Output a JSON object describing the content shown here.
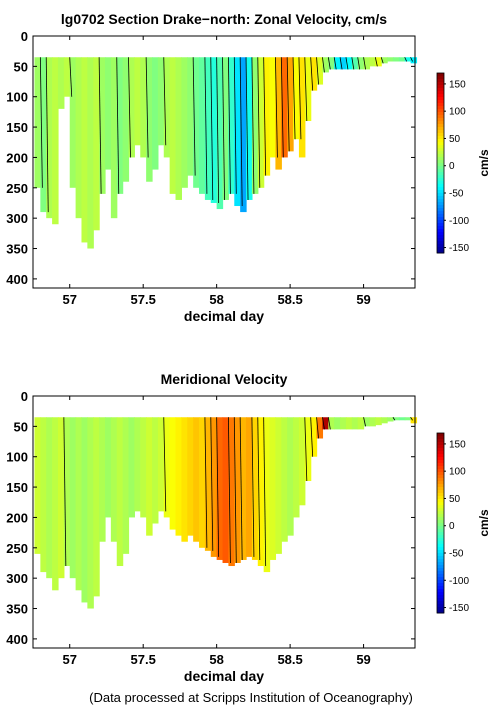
{
  "footer": "(Data processed at Scripps Institution of Oceanography)",
  "chart_data": [
    {
      "type": "heatmap",
      "title": "lg0702 Section Drake−north: Zonal Velocity, cm/s",
      "xlabel": "decimal day",
      "ylabel": "",
      "xlim": [
        56.75,
        59.35
      ],
      "ylim": [
        415,
        0
      ],
      "xticks": [
        57,
        57.5,
        58,
        58.5,
        59
      ],
      "xticklabels": [
        "57",
        "57.5",
        "58",
        "58.5",
        "59"
      ],
      "yticks": [
        0,
        50,
        100,
        150,
        200,
        250,
        300,
        350,
        400
      ],
      "colorbar": {
        "label": "cm/s",
        "range": [
          -160,
          170
        ],
        "ticks": [
          150,
          100,
          50,
          0,
          -50,
          -100,
          -150
        ]
      },
      "profiles": [
        {
          "x": 56.78,
          "bottom": 250,
          "value": 15
        },
        {
          "x": 56.82,
          "bottom": 290,
          "value": 5
        },
        {
          "x": 56.86,
          "bottom": 300,
          "value": 20
        },
        {
          "x": 56.9,
          "bottom": 310,
          "value": 25
        },
        {
          "x": 56.94,
          "bottom": 120,
          "value": 20
        },
        {
          "x": 56.98,
          "bottom": 100,
          "value": 25
        },
        {
          "x": 57.02,
          "bottom": 250,
          "value": 15
        },
        {
          "x": 57.06,
          "bottom": 300,
          "value": 20
        },
        {
          "x": 57.1,
          "bottom": 340,
          "value": 25
        },
        {
          "x": 57.14,
          "bottom": 350,
          "value": 20
        },
        {
          "x": 57.18,
          "bottom": 320,
          "value": 25
        },
        {
          "x": 57.22,
          "bottom": 260,
          "value": 15
        },
        {
          "x": 57.26,
          "bottom": 220,
          "value": 10
        },
        {
          "x": 57.3,
          "bottom": 300,
          "value": 15
        },
        {
          "x": 57.34,
          "bottom": 260,
          "value": 5
        },
        {
          "x": 57.38,
          "bottom": 240,
          "value": 10
        },
        {
          "x": 57.42,
          "bottom": 200,
          "value": 20
        },
        {
          "x": 57.46,
          "bottom": 180,
          "value": 25
        },
        {
          "x": 57.5,
          "bottom": 200,
          "value": 20
        },
        {
          "x": 57.54,
          "bottom": 240,
          "value": 10
        },
        {
          "x": 57.58,
          "bottom": 220,
          "value": 5
        },
        {
          "x": 57.62,
          "bottom": 180,
          "value": 10
        },
        {
          "x": 57.66,
          "bottom": 200,
          "value": 20
        },
        {
          "x": 57.7,
          "bottom": 260,
          "value": 25
        },
        {
          "x": 57.74,
          "bottom": 270,
          "value": 20
        },
        {
          "x": 57.78,
          "bottom": 250,
          "value": 15
        },
        {
          "x": 57.82,
          "bottom": 230,
          "value": 10
        },
        {
          "x": 57.86,
          "bottom": 250,
          "value": 0
        },
        {
          "x": 57.9,
          "bottom": 260,
          "value": -5
        },
        {
          "x": 57.94,
          "bottom": 270,
          "value": -15
        },
        {
          "x": 57.98,
          "bottom": 275,
          "value": -25
        },
        {
          "x": 58.02,
          "bottom": 285,
          "value": -10
        },
        {
          "x": 58.06,
          "bottom": 270,
          "value": 5
        },
        {
          "x": 58.1,
          "bottom": 260,
          "value": -20
        },
        {
          "x": 58.14,
          "bottom": 280,
          "value": -45
        },
        {
          "x": 58.18,
          "bottom": 290,
          "value": -65
        },
        {
          "x": 58.22,
          "bottom": 270,
          "value": -30
        },
        {
          "x": 58.26,
          "bottom": 260,
          "value": 10
        },
        {
          "x": 58.3,
          "bottom": 250,
          "value": 30
        },
        {
          "x": 58.34,
          "bottom": 230,
          "value": 50
        },
        {
          "x": 58.38,
          "bottom": 200,
          "value": 45
        },
        {
          "x": 58.42,
          "bottom": 220,
          "value": 70
        },
        {
          "x": 58.46,
          "bottom": 200,
          "value": 95
        },
        {
          "x": 58.5,
          "bottom": 190,
          "value": 75
        },
        {
          "x": 58.54,
          "bottom": 170,
          "value": 45
        },
        {
          "x": 58.58,
          "bottom": 200,
          "value": 55
        },
        {
          "x": 58.62,
          "bottom": 140,
          "value": 40
        },
        {
          "x": 58.66,
          "bottom": 90,
          "value": 55
        },
        {
          "x": 58.7,
          "bottom": 80,
          "value": 35
        },
        {
          "x": 58.74,
          "bottom": 60,
          "value": 15
        },
        {
          "x": 58.78,
          "bottom": 55,
          "value": 5
        },
        {
          "x": 58.82,
          "bottom": 55,
          "value": -40
        },
        {
          "x": 58.86,
          "bottom": 55,
          "value": -50
        },
        {
          "x": 58.9,
          "bottom": 55,
          "value": -35
        },
        {
          "x": 58.94,
          "bottom": 55,
          "value": -10
        },
        {
          "x": 58.98,
          "bottom": 55,
          "value": 10
        },
        {
          "x": 59.02,
          "bottom": 55,
          "value": 20
        },
        {
          "x": 59.06,
          "bottom": 50,
          "value": 25
        },
        {
          "x": 59.1,
          "bottom": 50,
          "value": 40
        },
        {
          "x": 59.14,
          "bottom": 45,
          "value": 15
        },
        {
          "x": 59.18,
          "bottom": 42,
          "value": 10
        },
        {
          "x": 59.22,
          "bottom": 42,
          "value": 5
        },
        {
          "x": 59.26,
          "bottom": 42,
          "value": 0
        },
        {
          "x": 59.3,
          "bottom": 42,
          "value": -30
        },
        {
          "x": 59.34,
          "bottom": 45,
          "value": -40
        }
      ],
      "top_depth": 35
    },
    {
      "type": "heatmap",
      "title": "Meridional Velocity",
      "xlabel": "decimal day",
      "ylabel": "",
      "xlim": [
        56.75,
        59.35
      ],
      "ylim": [
        415,
        0
      ],
      "xticks": [
        57,
        57.5,
        58,
        58.5,
        59
      ],
      "xticklabels": [
        "57",
        "57.5",
        "58",
        "58.5",
        "59"
      ],
      "yticks": [
        0,
        50,
        100,
        150,
        200,
        250,
        300,
        350,
        400
      ],
      "colorbar": {
        "label": "cm/s",
        "range": [
          -160,
          170
        ],
        "ticks": [
          150,
          100,
          50,
          0,
          -50,
          -100,
          -150
        ]
      },
      "profiles": [
        {
          "x": 56.78,
          "bottom": 260,
          "value": 30
        },
        {
          "x": 56.82,
          "bottom": 290,
          "value": 25
        },
        {
          "x": 56.86,
          "bottom": 300,
          "value": 20
        },
        {
          "x": 56.9,
          "bottom": 320,
          "value": 25
        },
        {
          "x": 56.94,
          "bottom": 300,
          "value": 30
        },
        {
          "x": 56.98,
          "bottom": 280,
          "value": 20
        },
        {
          "x": 57.02,
          "bottom": 300,
          "value": 15
        },
        {
          "x": 57.06,
          "bottom": 320,
          "value": 20
        },
        {
          "x": 57.1,
          "bottom": 340,
          "value": 15
        },
        {
          "x": 57.14,
          "bottom": 350,
          "value": 20
        },
        {
          "x": 57.18,
          "bottom": 330,
          "value": 25
        },
        {
          "x": 57.22,
          "bottom": 240,
          "value": 20
        },
        {
          "x": 57.26,
          "bottom": 200,
          "value": 15
        },
        {
          "x": 57.3,
          "bottom": 240,
          "value": 20
        },
        {
          "x": 57.34,
          "bottom": 280,
          "value": 25
        },
        {
          "x": 57.38,
          "bottom": 260,
          "value": 20
        },
        {
          "x": 57.42,
          "bottom": 200,
          "value": 15
        },
        {
          "x": 57.46,
          "bottom": 190,
          "value": 20
        },
        {
          "x": 57.5,
          "bottom": 200,
          "value": 25
        },
        {
          "x": 57.54,
          "bottom": 230,
          "value": 30
        },
        {
          "x": 57.58,
          "bottom": 210,
          "value": 25
        },
        {
          "x": 57.62,
          "bottom": 190,
          "value": 30
        },
        {
          "x": 57.66,
          "bottom": 200,
          "value": 40
        },
        {
          "x": 57.7,
          "bottom": 220,
          "value": 45
        },
        {
          "x": 57.74,
          "bottom": 230,
          "value": 50
        },
        {
          "x": 57.78,
          "bottom": 240,
          "value": 55
        },
        {
          "x": 57.82,
          "bottom": 230,
          "value": 60
        },
        {
          "x": 57.86,
          "bottom": 240,
          "value": 65
        },
        {
          "x": 57.9,
          "bottom": 250,
          "value": 60
        },
        {
          "x": 57.94,
          "bottom": 255,
          "value": 70
        },
        {
          "x": 57.98,
          "bottom": 265,
          "value": 80
        },
        {
          "x": 58.02,
          "bottom": 270,
          "value": 95
        },
        {
          "x": 58.06,
          "bottom": 275,
          "value": 100
        },
        {
          "x": 58.1,
          "bottom": 280,
          "value": 90
        },
        {
          "x": 58.14,
          "bottom": 275,
          "value": 80
        },
        {
          "x": 58.18,
          "bottom": 270,
          "value": 70
        },
        {
          "x": 58.22,
          "bottom": 265,
          "value": 75
        },
        {
          "x": 58.26,
          "bottom": 270,
          "value": 60
        },
        {
          "x": 58.3,
          "bottom": 280,
          "value": 50
        },
        {
          "x": 58.34,
          "bottom": 290,
          "value": 40
        },
        {
          "x": 58.38,
          "bottom": 270,
          "value": 35
        },
        {
          "x": 58.42,
          "bottom": 260,
          "value": 30
        },
        {
          "x": 58.46,
          "bottom": 240,
          "value": 25
        },
        {
          "x": 58.5,
          "bottom": 230,
          "value": 20
        },
        {
          "x": 58.54,
          "bottom": 200,
          "value": 25
        },
        {
          "x": 58.58,
          "bottom": 180,
          "value": 30
        },
        {
          "x": 58.62,
          "bottom": 140,
          "value": 40
        },
        {
          "x": 58.66,
          "bottom": 100,
          "value": 50
        },
        {
          "x": 58.7,
          "bottom": 70,
          "value": 90
        },
        {
          "x": 58.74,
          "bottom": 55,
          "value": 155
        },
        {
          "x": 58.78,
          "bottom": 55,
          "value": 20
        },
        {
          "x": 58.82,
          "bottom": 55,
          "value": 15
        },
        {
          "x": 58.86,
          "bottom": 55,
          "value": 20
        },
        {
          "x": 58.9,
          "bottom": 55,
          "value": 25
        },
        {
          "x": 58.94,
          "bottom": 55,
          "value": 20
        },
        {
          "x": 58.98,
          "bottom": 55,
          "value": 25
        },
        {
          "x": 59.02,
          "bottom": 50,
          "value": 15
        },
        {
          "x": 59.06,
          "bottom": 50,
          "value": 20
        },
        {
          "x": 59.1,
          "bottom": 48,
          "value": 25
        },
        {
          "x": 59.14,
          "bottom": 45,
          "value": 20
        },
        {
          "x": 59.18,
          "bottom": 42,
          "value": 15
        },
        {
          "x": 59.22,
          "bottom": 40,
          "value": 5
        },
        {
          "x": 59.26,
          "bottom": 40,
          "value": 0
        },
        {
          "x": 59.3,
          "bottom": 40,
          "value": 5
        },
        {
          "x": 59.34,
          "bottom": 45,
          "value": 55
        }
      ],
      "top_depth": 35
    }
  ]
}
